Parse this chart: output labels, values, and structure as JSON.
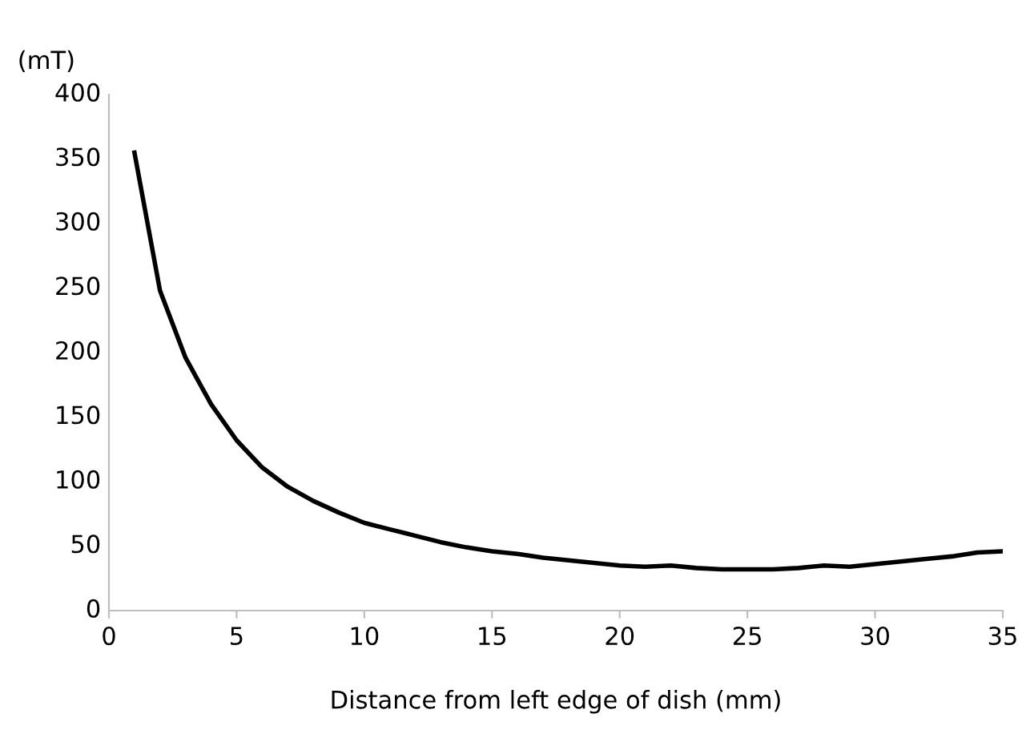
{
  "chart_data": {
    "type": "line",
    "xlabel": "Distance from left edge of dish (mm)",
    "ylabel": "(mT)",
    "x": [
      1,
      2,
      3,
      4,
      5,
      6,
      7,
      8,
      9,
      10,
      11,
      12,
      13,
      14,
      15,
      16,
      17,
      18,
      19,
      20,
      21,
      22,
      23,
      24,
      25,
      26,
      27,
      28,
      29,
      30,
      31,
      32,
      33,
      34,
      35
    ],
    "series": [
      {
        "color": "#000000",
        "values": [
          355,
          248,
          196,
          160,
          132,
          111,
          96,
          85,
          76,
          68,
          63,
          58,
          53,
          49,
          46,
          44,
          41,
          39,
          37,
          35,
          34,
          35,
          33,
          32,
          32,
          32,
          33,
          35,
          34,
          36,
          38,
          40,
          42,
          45,
          46
        ]
      }
    ],
    "xlim": [
      0,
      35
    ],
    "xticks": [
      0,
      5,
      10,
      15,
      20,
      25,
      30,
      35
    ],
    "ylim": [
      0,
      400
    ],
    "yticks": [
      0,
      50,
      100,
      150,
      200,
      250,
      300,
      350,
      400
    ],
    "grid": false,
    "legend": false,
    "marker": "none",
    "line_style": "solid"
  }
}
